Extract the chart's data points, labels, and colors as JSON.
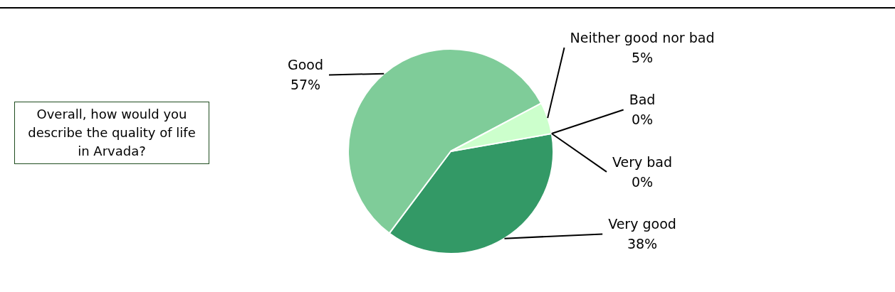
{
  "chart_data": {
    "type": "pie",
    "categories": [
      "Very good",
      "Good",
      "Neither good nor bad",
      "Bad",
      "Very bad"
    ],
    "values": [
      38,
      57,
      5,
      0,
      0
    ],
    "value_labels": [
      "38%",
      "57%",
      "5%",
      "0%",
      "0%"
    ],
    "colors": [
      "#339966",
      "#7fcc99",
      "#ccffcc",
      "#99cc99",
      "#006633"
    ],
    "annotations": [
      "Overall, how would you describe the quality of life in Arvada?"
    ],
    "legend": false
  }
}
